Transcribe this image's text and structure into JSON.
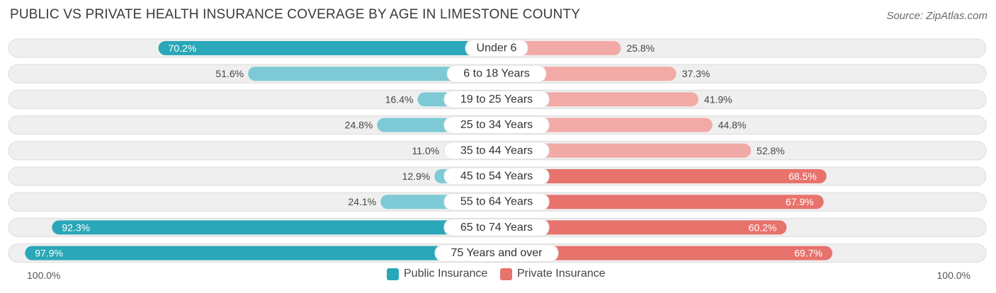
{
  "header": {
    "title": "PUBLIC VS PRIVATE HEALTH INSURANCE COVERAGE BY AGE IN LIMESTONE COUNTY",
    "source": "Source: ZipAtlas.com"
  },
  "axis": {
    "left_label": "100.0%",
    "right_label": "100.0%"
  },
  "legend": {
    "public": "Public Insurance",
    "private": "Private Insurance"
  },
  "colors": {
    "public_dark": "#2aa7b8",
    "public_light": "#7dcad6",
    "private_dark": "#e8726c",
    "private_light": "#f2aaa6",
    "track": "#efefef",
    "track_border": "#dcdcdc"
  },
  "chart_data": {
    "type": "bar",
    "orientation": "horizontal-diverging",
    "title": "PUBLIC VS PRIVATE HEALTH INSURANCE COVERAGE BY AGE IN LIMESTONE COUNTY",
    "xlim": [
      0,
      100
    ],
    "categories": [
      "Under 6",
      "6 to 18 Years",
      "19 to 25 Years",
      "25 to 34 Years",
      "35 to 44 Years",
      "45 to 54 Years",
      "55 to 64 Years",
      "65 to 74 Years",
      "75 Years and over"
    ],
    "series": [
      {
        "name": "Public Insurance",
        "values": [
          70.2,
          51.6,
          16.4,
          24.8,
          11.0,
          12.9,
          24.1,
          92.3,
          97.9
        ],
        "labels": [
          "70.2%",
          "51.6%",
          "16.4%",
          "24.8%",
          "11.0%",
          "12.9%",
          "24.1%",
          "92.3%",
          "97.9%"
        ]
      },
      {
        "name": "Private Insurance",
        "values": [
          25.8,
          37.3,
          41.9,
          44.8,
          52.8,
          68.5,
          67.9,
          60.2,
          69.7
        ],
        "labels": [
          "25.8%",
          "37.3%",
          "41.9%",
          "44.8%",
          "52.8%",
          "68.5%",
          "67.9%",
          "60.2%",
          "69.7%"
        ]
      }
    ],
    "legend_position": "bottom-center"
  }
}
